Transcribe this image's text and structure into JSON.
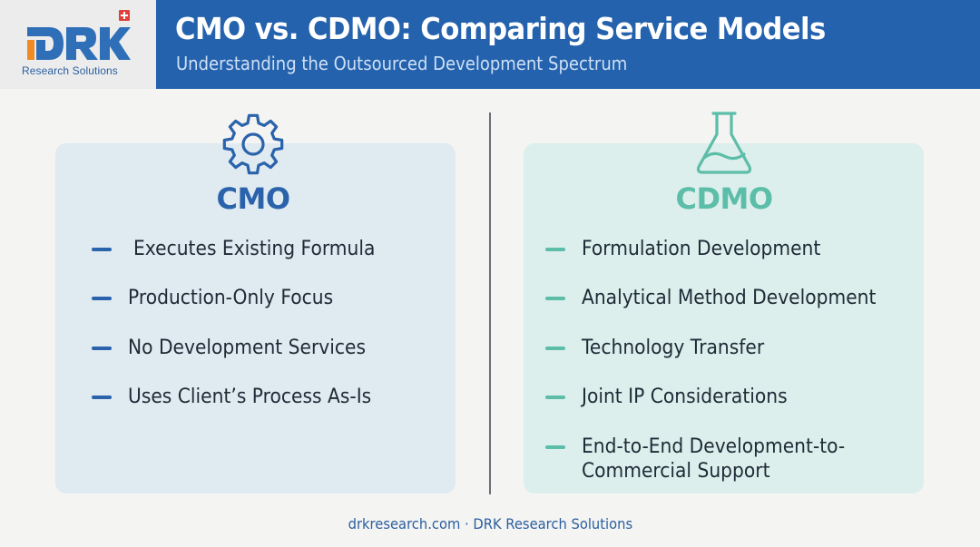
{
  "header": {
    "title": "CMO vs. CDMO: Comparing Service Models",
    "subtitle": "Understanding the Outsourced Development Spectrum"
  },
  "logo": {
    "wordmark": "DRK",
    "tagline": "Research Solutions",
    "icon": "swiss-cross-icon"
  },
  "cmo": {
    "heading": "CMO",
    "icon": "gear-icon",
    "items": [
      "Executes Existing Formula",
      "Production-Only Focus",
      "No Development Services",
      "Uses Client’s Process As-Is"
    ]
  },
  "cdmo": {
    "heading": "CDMO",
    "icon": "flask-icon",
    "items": [
      "Formulation Development",
      "Analytical Method Development",
      "Technology Transfer",
      "Joint IP Considerations",
      "End-to-End Development-to-",
      "Commercial Support"
    ]
  },
  "footer": {
    "text": "drkresearch.com · DRK Research Solutions"
  },
  "colors": {
    "header_blue": "#2462ad",
    "cmo_accent": "#2a63ab",
    "cdmo_accent": "#5cbda8",
    "cmo_card": "#dfeaf1",
    "cdmo_card": "#dcefec",
    "logo_red": "#e0403a"
  }
}
